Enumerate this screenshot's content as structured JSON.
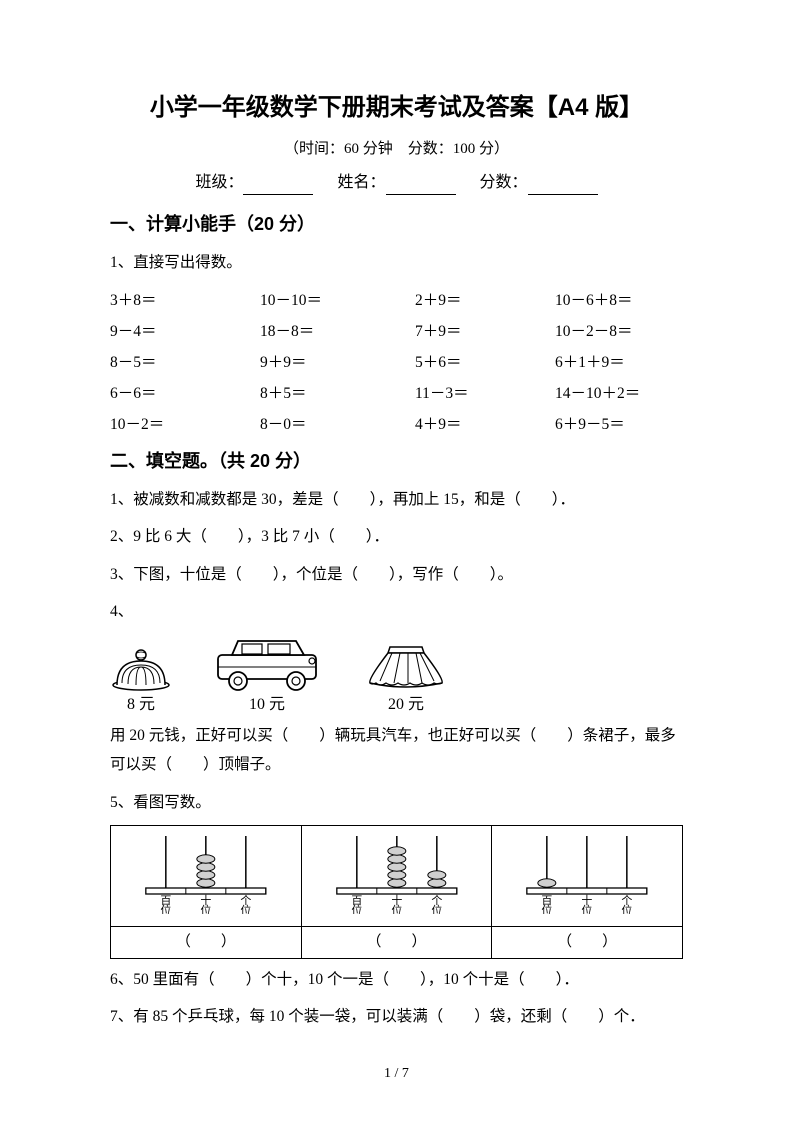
{
  "title": "小学一年级数学下册期末考试及答案【A4 版】",
  "subtitle_prefix": "（时间：",
  "time": "60 分钟",
  "subtitle_mid": "　分数：",
  "total_score": "100 分",
  "subtitle_suffix": "）",
  "info": {
    "class_label": "班级：",
    "name_label": "姓名：",
    "score_label": "分数："
  },
  "section1": {
    "title": "一、计算小能手（20 分）",
    "q1": "1、直接写出得数。",
    "rows": [
      [
        "3＋8＝",
        "10－10＝",
        "2＋9＝",
        "10－6＋8＝"
      ],
      [
        "9－4＝",
        "18－8＝",
        "7＋9＝",
        "10－2－8＝"
      ],
      [
        "8－5＝",
        "9＋9＝",
        "5＋6＝",
        "6＋1＋9＝"
      ],
      [
        "6－6＝",
        "8＋5＝",
        "11－3＝",
        "14－10＋2＝"
      ],
      [
        "10－2＝",
        "8－0＝",
        "4＋9＝",
        "6＋9－5＝"
      ]
    ]
  },
  "section2": {
    "title": "二、填空题。（共 20 分）",
    "q1": "1、被减数和减数都是 30，差是（　　），再加上 15，和是（　　）．",
    "q2": "2、9 比 6 大（　　），3 比 7 小（　　）．",
    "q3": "3、下图，十位是（　　），个位是（　　），写作（　　）。",
    "q4_label": "4、",
    "items": {
      "hat": {
        "price": "8 元"
      },
      "car": {
        "price": "10 元"
      },
      "skirt": {
        "price": "20 元"
      }
    },
    "q4_text": "用 20 元钱，正好可以买（　　）辆玩具汽车，也正好可以买（　　）条裙子，最多可以买（　　）顶帽子。",
    "q5_label": "5、看图写数。",
    "abacus": {
      "place_labels": [
        "百位",
        "十位",
        "个位"
      ],
      "answer_cells": [
        "（　　）",
        "（　　）",
        "（　　）"
      ],
      "def1": {
        "beads": [
          0,
          4,
          0
        ]
      },
      "def2": {
        "beads": [
          0,
          5,
          2
        ]
      },
      "def3": {
        "beads": [
          1,
          0,
          0
        ]
      }
    },
    "q6": "6、50 里面有（　　）个十，10 个一是（　　），10 个十是（　　）．",
    "q7": "7、有 85 个乒乓球，每 10 个装一袋，可以装满（　　）袋，还剩（　　）个．"
  },
  "page_num": "1 / 7"
}
